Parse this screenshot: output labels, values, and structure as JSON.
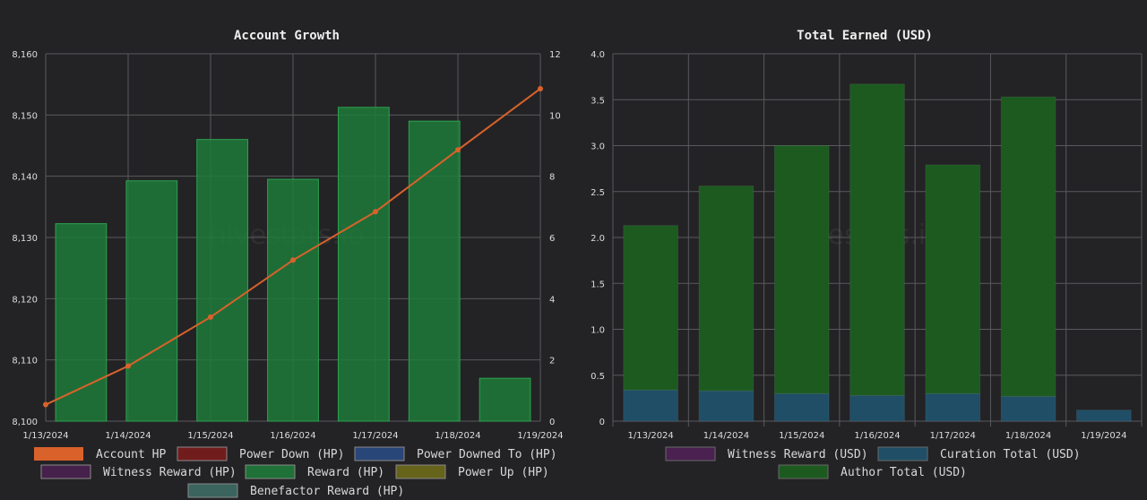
{
  "watermark": "hivestats.io",
  "chart_data": [
    {
      "type": "bar",
      "title": "Account Growth",
      "categories": [
        "1/13/2024",
        "1/14/2024",
        "1/15/2024",
        "1/16/2024",
        "1/17/2024",
        "1/18/2024",
        "1/19/2024"
      ],
      "y_left": {
        "ticks": [
          "8,100",
          "8,110",
          "8,120",
          "8,130",
          "8,140",
          "8,150",
          "8,160"
        ],
        "range": [
          8100,
          8160
        ]
      },
      "y_right": {
        "ticks": [
          "0",
          "2",
          "4",
          "6",
          "8",
          "10",
          "12"
        ],
        "range": [
          0,
          12
        ]
      },
      "grid": true,
      "legend_position": "bottom",
      "series": [
        {
          "name": "Account HP",
          "kind": "line",
          "axis": "left",
          "color": "#d9622b",
          "values": [
            8102.7,
            8109.0,
            8117.0,
            8126.3,
            8134.2,
            8144.3,
            8154.3
          ]
        },
        {
          "name": "Power Down (HP)",
          "kind": "bar",
          "axis": "right",
          "color": "#7a1c1c",
          "values": [
            0,
            0,
            0,
            0,
            0,
            0,
            0
          ]
        },
        {
          "name": "Power Downed To (HP)",
          "kind": "bar",
          "axis": "right",
          "color": "#2a4a82",
          "values": [
            0,
            0,
            0,
            0,
            0,
            0,
            0
          ]
        },
        {
          "name": "Witness Reward (HP)",
          "kind": "bar",
          "axis": "right",
          "color": "#4a2150",
          "values": [
            0,
            0,
            0,
            0,
            0,
            0,
            0
          ]
        },
        {
          "name": "Reward (HP)",
          "kind": "bar",
          "axis": "right",
          "color": "#1f7a3a",
          "values": [
            6.45,
            7.85,
            9.2,
            7.9,
            10.25,
            9.8,
            1.4
          ]
        },
        {
          "name": "Power Up (HP)",
          "kind": "bar",
          "axis": "right",
          "color": "#6e6a1a",
          "values": [
            0,
            0,
            0,
            0,
            0,
            0,
            0
          ]
        },
        {
          "name": "Benefactor Reward (HP)",
          "kind": "bar",
          "axis": "right",
          "color": "#3d6b64",
          "values": [
            0,
            0,
            0,
            0,
            0,
            0,
            0
          ]
        }
      ]
    },
    {
      "type": "bar",
      "stacked": true,
      "title": "Total Earned (USD)",
      "categories": [
        "1/13/2024",
        "1/14/2024",
        "1/15/2024",
        "1/16/2024",
        "1/17/2024",
        "1/18/2024",
        "1/19/2024"
      ],
      "y": {
        "ticks": [
          "0",
          "0.5",
          "1.0",
          "1.5",
          "2.0",
          "2.5",
          "3.0",
          "3.5",
          "4.0"
        ],
        "range": [
          0,
          4
        ]
      },
      "grid": true,
      "legend_position": "bottom",
      "series": [
        {
          "name": "Witness Reward (USD)",
          "color": "#4a2150",
          "values": [
            0,
            0,
            0,
            0,
            0,
            0,
            0
          ]
        },
        {
          "name": "Curation Total (USD)",
          "color": "#1f4e66",
          "values": [
            0.34,
            0.33,
            0.3,
            0.28,
            0.3,
            0.27,
            0.12
          ]
        },
        {
          "name": "Author Total (USD)",
          "color": "#1c5a1f",
          "values": [
            1.79,
            2.23,
            2.7,
            3.39,
            2.49,
            3.26,
            0
          ]
        }
      ]
    }
  ]
}
